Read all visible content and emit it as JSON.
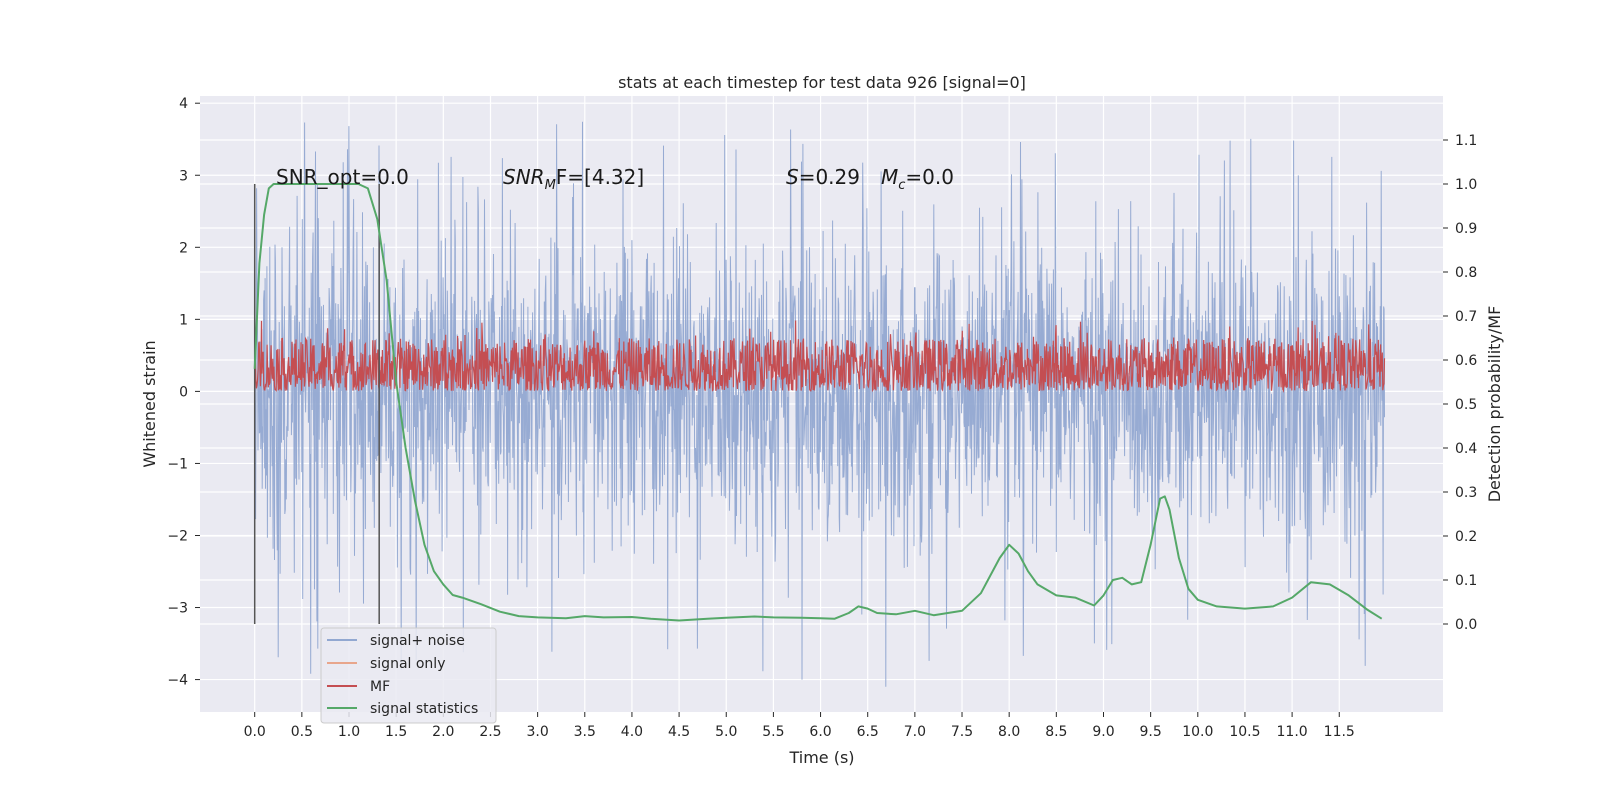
{
  "chart_data": {
    "type": "line",
    "title": "stats at each timestep for test data 926 [signal=0]",
    "xlabel": "Time (s)",
    "ylabel_left": "Whitened strain",
    "ylabel_right": "Detection probability/MF",
    "xlim": [
      -0.58,
      12.6
    ],
    "ylim_left": [
      -4.45,
      4.1
    ],
    "ylim_right": [
      -0.2,
      1.2
    ],
    "x_ticks": [
      "0.0",
      "0.5",
      "1.0",
      "1.5",
      "2.0",
      "2.5",
      "3.0",
      "3.5",
      "4.0",
      "4.5",
      "5.0",
      "5.5",
      "6.0",
      "6.5",
      "7.0",
      "7.5",
      "8.0",
      "8.5",
      "9.0",
      "9.5",
      "10.0",
      "10.5",
      "11.0",
      "11.5"
    ],
    "y_ticks_left": [
      "4",
      "3",
      "2",
      "1",
      "0",
      "−1",
      "−2",
      "−3",
      "−4"
    ],
    "y_ticks_right": [
      "1.1",
      "1.0",
      "0.9",
      "0.8",
      "0.7",
      "0.6",
      "0.5",
      "0.4",
      "0.3",
      "0.2",
      "0.1",
      "0.0"
    ],
    "grid": true,
    "legend_position": "lower-left",
    "annotations": {
      "snr_opt": "SNR_opt=0.0",
      "snr_mf_base": "SNR",
      "snr_mf_sub": "M",
      "snr_mf_rest": "F=[4.32]",
      "s_label": "S",
      "s_value": "=0.29",
      "mc_base": "M",
      "mc_sub": "c",
      "mc_value": "=0.0"
    },
    "vlines_x": [
      0.0,
      1.32
    ],
    "series": [
      {
        "name": "signal+ noise",
        "color": "#92a8d1",
        "axis": "left",
        "x_range": [
          0.0,
          11.98
        ],
        "typical_amplitude": 1.7,
        "peak_amplitude_range": [
          -4.1,
          3.75
        ]
      },
      {
        "name": "signal only",
        "color": "#e8a68c",
        "axis": "left",
        "values": []
      },
      {
        "name": "MF",
        "color": "#c44e52",
        "axis": "right",
        "x_range": [
          0.0,
          11.98
        ],
        "typical_range": [
          0.53,
          0.65
        ],
        "peak_max": 0.69
      },
      {
        "name": "signal statistics",
        "color": "#55a868",
        "axis": "right",
        "x": [
          0.0,
          0.05,
          0.1,
          0.15,
          0.2,
          0.3,
          0.5,
          0.8,
          1.0,
          1.1,
          1.2,
          1.3,
          1.4,
          1.5,
          1.6,
          1.7,
          1.8,
          1.9,
          2.0,
          2.1,
          2.2,
          2.4,
          2.6,
          2.8,
          3.0,
          3.3,
          3.5,
          3.7,
          4.0,
          4.2,
          4.5,
          4.8,
          5.0,
          5.3,
          5.5,
          5.8,
          6.0,
          6.15,
          6.3,
          6.4,
          6.5,
          6.6,
          6.8,
          7.0,
          7.2,
          7.5,
          7.7,
          7.9,
          8.0,
          8.1,
          8.2,
          8.3,
          8.5,
          8.7,
          8.9,
          9.0,
          9.1,
          9.2,
          9.3,
          9.4,
          9.5,
          9.6,
          9.65,
          9.7,
          9.8,
          9.9,
          10.0,
          10.2,
          10.5,
          10.8,
          11.0,
          11.2,
          11.4,
          11.6,
          11.8,
          11.95
        ],
        "y": [
          0.58,
          0.82,
          0.93,
          0.99,
          1.0,
          1.0,
          1.0,
          1.0,
          1.0,
          1.0,
          0.99,
          0.92,
          0.78,
          0.55,
          0.4,
          0.28,
          0.18,
          0.12,
          0.09,
          0.066,
          0.06,
          0.045,
          0.028,
          0.018,
          0.015,
          0.013,
          0.018,
          0.015,
          0.016,
          0.012,
          0.008,
          0.012,
          0.014,
          0.017,
          0.015,
          0.014,
          0.013,
          0.012,
          0.025,
          0.04,
          0.035,
          0.025,
          0.022,
          0.03,
          0.02,
          0.03,
          0.07,
          0.15,
          0.18,
          0.16,
          0.12,
          0.09,
          0.065,
          0.06,
          0.042,
          0.065,
          0.1,
          0.105,
          0.09,
          0.095,
          0.18,
          0.285,
          0.29,
          0.26,
          0.15,
          0.08,
          0.055,
          0.04,
          0.035,
          0.04,
          0.06,
          0.095,
          0.09,
          0.065,
          0.032,
          0.012
        ]
      }
    ]
  }
}
